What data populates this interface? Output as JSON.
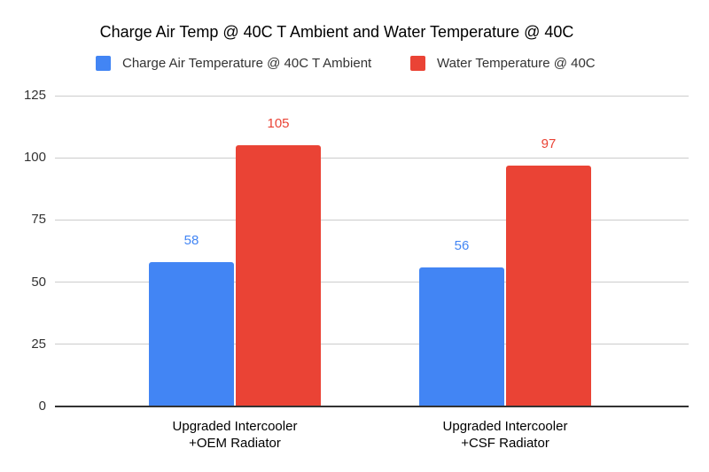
{
  "chart_data": {
    "type": "bar",
    "title": "Charge Air Temp @ 40C T Ambient and Water Temperature @ 40C",
    "categories": [
      "Upgraded Intercooler +OEM Radiator",
      "Upgraded Intercooler +CSF Radiator"
    ],
    "category_lines": [
      [
        "Upgraded Intercooler",
        "+OEM Radiator"
      ],
      [
        "Upgraded Intercooler",
        "+CSF Radiator"
      ]
    ],
    "series": [
      {
        "name": "Charge Air Temperature @ 40C T Ambient",
        "color": "#4285F4",
        "values": [
          58,
          56
        ]
      },
      {
        "name": "Water Temperature @ 40C",
        "color": "#EA4335",
        "values": [
          105,
          97
        ]
      }
    ],
    "value_labels": [
      [
        58,
        56
      ],
      [
        105,
        97
      ]
    ],
    "xlabel": "",
    "ylabel": "",
    "ylim": [
      0,
      125
    ],
    "yticks": [
      0,
      25,
      50,
      75,
      100,
      125
    ],
    "grid": true,
    "legend_position": "top"
  },
  "colors": {
    "background": "#ffffff",
    "gridline": "#cccccc",
    "axis_line": "#333333",
    "title_text": "#000000",
    "legend_text": "#333333",
    "ytick_text": "#333333",
    "category_text": "#000000"
  }
}
